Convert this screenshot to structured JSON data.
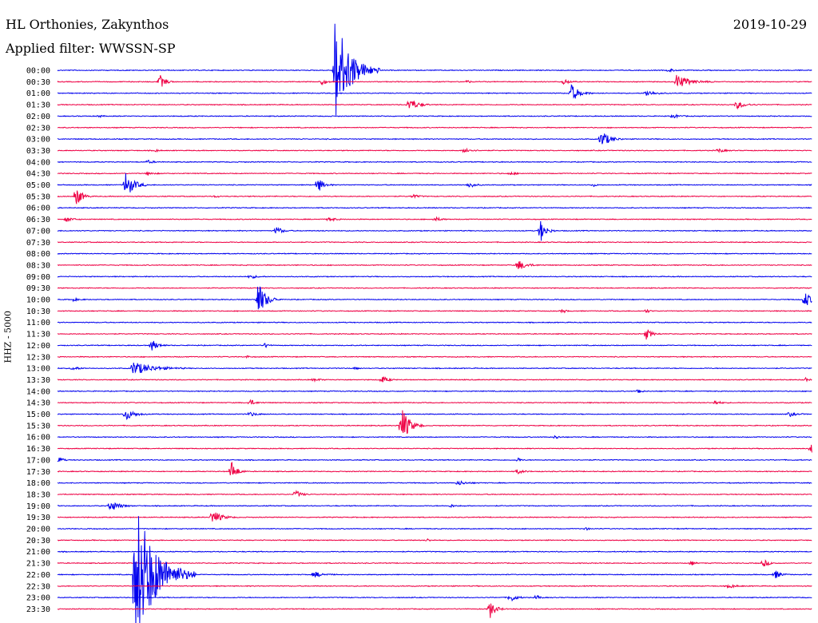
{
  "header": {
    "station": "HL Orthonies, Zakynthos",
    "filter": "Applied filter: WWSSN-SP",
    "date": "2019-10-29"
  },
  "colors": {
    "blue": "#0000ee",
    "red": "#ee0044"
  },
  "chart_data": {
    "type": "line",
    "title": "HL Orthonies, Zakynthos",
    "subtitle": "Applied filter: WWSSN-SP",
    "date": "2019-10-29",
    "ylabel": "HHZ - 5000",
    "xlabel": "",
    "grid": false,
    "color_cycle": [
      "blue",
      "red"
    ],
    "traces": [
      {
        "label": "00:00",
        "events": [
          {
            "x": 0.367,
            "amp": 70,
            "dur": 0.06
          },
          {
            "x": 0.81,
            "amp": 2,
            "dur": 0.02
          }
        ]
      },
      {
        "label": "00:30",
        "events": [
          {
            "x": 0.135,
            "amp": 10,
            "dur": 0.02
          },
          {
            "x": 0.349,
            "amp": 4,
            "dur": 0.02
          },
          {
            "x": 0.542,
            "amp": 3,
            "dur": 0.01
          },
          {
            "x": 0.67,
            "amp": 4,
            "dur": 0.02
          },
          {
            "x": 0.82,
            "amp": 9,
            "dur": 0.05
          }
        ]
      },
      {
        "label": "01:00",
        "events": [
          {
            "x": 0.68,
            "amp": 12,
            "dur": 0.03
          },
          {
            "x": 0.78,
            "amp": 4,
            "dur": 0.03
          }
        ]
      },
      {
        "label": "01:30",
        "events": [
          {
            "x": 0.465,
            "amp": 9,
            "dur": 0.03
          },
          {
            "x": 0.9,
            "amp": 5,
            "dur": 0.03
          }
        ]
      },
      {
        "label": "02:00",
        "events": [
          {
            "x": 0.055,
            "amp": 2,
            "dur": 0.01
          },
          {
            "x": 0.815,
            "amp": 3,
            "dur": 0.02
          }
        ]
      },
      {
        "label": "02:30",
        "events": []
      },
      {
        "label": "03:00",
        "events": [
          {
            "x": 0.72,
            "amp": 12,
            "dur": 0.03
          }
        ]
      },
      {
        "label": "03:30",
        "events": [
          {
            "x": 0.13,
            "amp": 2,
            "dur": 0.01
          },
          {
            "x": 0.54,
            "amp": 4,
            "dur": 0.02
          },
          {
            "x": 0.875,
            "amp": 3,
            "dur": 0.02
          }
        ]
      },
      {
        "label": "04:00",
        "events": [
          {
            "x": 0.12,
            "amp": 2,
            "dur": 0.02
          }
        ]
      },
      {
        "label": "04:30",
        "events": [
          {
            "x": 0.12,
            "amp": 2,
            "dur": 0.02
          },
          {
            "x": 0.6,
            "amp": 2,
            "dur": 0.02
          }
        ]
      },
      {
        "label": "05:00",
        "events": [
          {
            "x": 0.09,
            "amp": 18,
            "dur": 0.03
          },
          {
            "x": 0.345,
            "amp": 10,
            "dur": 0.02
          },
          {
            "x": 0.545,
            "amp": 4,
            "dur": 0.02
          },
          {
            "x": 0.71,
            "amp": 2,
            "dur": 0.01
          }
        ]
      },
      {
        "label": "05:30",
        "events": [
          {
            "x": 0.025,
            "amp": 14,
            "dur": 0.02
          },
          {
            "x": 0.21,
            "amp": 2,
            "dur": 0.01
          },
          {
            "x": 0.47,
            "amp": 3,
            "dur": 0.02
          }
        ]
      },
      {
        "label": "06:00",
        "events": []
      },
      {
        "label": "06:30",
        "events": [
          {
            "x": 0.012,
            "amp": 4,
            "dur": 0.02
          },
          {
            "x": 0.36,
            "amp": 3,
            "dur": 0.02
          },
          {
            "x": 0.5,
            "amp": 3,
            "dur": 0.02
          }
        ]
      },
      {
        "label": "07:00",
        "events": [
          {
            "x": 0.29,
            "amp": 6,
            "dur": 0.02
          },
          {
            "x": 0.64,
            "amp": 14,
            "dur": 0.02
          }
        ]
      },
      {
        "label": "07:30",
        "events": []
      },
      {
        "label": "08:00",
        "events": []
      },
      {
        "label": "08:30",
        "events": [
          {
            "x": 0.61,
            "amp": 7,
            "dur": 0.03
          }
        ]
      },
      {
        "label": "09:00",
        "events": [
          {
            "x": 0.255,
            "amp": 3,
            "dur": 0.02
          }
        ]
      },
      {
        "label": "09:30",
        "events": []
      },
      {
        "label": "10:00",
        "events": [
          {
            "x": 0.265,
            "amp": 24,
            "dur": 0.03
          },
          {
            "x": 0.02,
            "amp": 2,
            "dur": 0.02
          },
          {
            "x": 0.99,
            "amp": 12,
            "dur": 0.02
          }
        ]
      },
      {
        "label": "10:30",
        "events": [
          {
            "x": 0.67,
            "amp": 3,
            "dur": 0.01
          },
          {
            "x": 0.78,
            "amp": 3,
            "dur": 0.01
          }
        ]
      },
      {
        "label": "11:00",
        "events": []
      },
      {
        "label": "11:30",
        "events": [
          {
            "x": 0.78,
            "amp": 7,
            "dur": 0.02
          }
        ]
      },
      {
        "label": "12:00",
        "events": [
          {
            "x": 0.125,
            "amp": 8,
            "dur": 0.02
          },
          {
            "x": 0.275,
            "amp": 5,
            "dur": 0.01
          }
        ]
      },
      {
        "label": "12:30",
        "events": [
          {
            "x": 0.25,
            "amp": 2,
            "dur": 0.01
          }
        ]
      },
      {
        "label": "13:00",
        "events": [
          {
            "x": 0.02,
            "amp": 3,
            "dur": 0.02
          },
          {
            "x": 0.1,
            "amp": 9,
            "dur": 0.07
          },
          {
            "x": 0.395,
            "amp": 2,
            "dur": 0.01
          }
        ]
      },
      {
        "label": "13:30",
        "events": [
          {
            "x": 0.34,
            "amp": 2,
            "dur": 0.02
          },
          {
            "x": 0.43,
            "amp": 5,
            "dur": 0.02
          },
          {
            "x": 0.99,
            "amp": 3,
            "dur": 0.01
          }
        ]
      },
      {
        "label": "14:00",
        "events": [
          {
            "x": 0.77,
            "amp": 4,
            "dur": 0.01
          }
        ]
      },
      {
        "label": "14:30",
        "events": [
          {
            "x": 0.255,
            "amp": 4,
            "dur": 0.02
          },
          {
            "x": 0.87,
            "amp": 3,
            "dur": 0.02
          }
        ]
      },
      {
        "label": "15:00",
        "events": [
          {
            "x": 0.09,
            "amp": 8,
            "dur": 0.03
          },
          {
            "x": 0.255,
            "amp": 3,
            "dur": 0.02
          },
          {
            "x": 0.97,
            "amp": 3,
            "dur": 0.02
          }
        ]
      },
      {
        "label": "15:30",
        "events": [
          {
            "x": 0.455,
            "amp": 26,
            "dur": 0.03
          }
        ]
      },
      {
        "label": "16:00",
        "events": [
          {
            "x": 0.66,
            "amp": 3,
            "dur": 0.01
          }
        ]
      },
      {
        "label": "16:30",
        "events": [
          {
            "x": 0.998,
            "amp": 8,
            "dur": 0.01
          }
        ]
      },
      {
        "label": "17:00",
        "events": [
          {
            "x": 0.003,
            "amp": 6,
            "dur": 0.01
          },
          {
            "x": 0.61,
            "amp": 3,
            "dur": 0.01
          }
        ]
      },
      {
        "label": "17:30",
        "events": [
          {
            "x": 0.23,
            "amp": 14,
            "dur": 0.02
          },
          {
            "x": 0.61,
            "amp": 3,
            "dur": 0.02
          }
        ]
      },
      {
        "label": "18:00",
        "events": [
          {
            "x": 0.53,
            "amp": 3,
            "dur": 0.03
          }
        ]
      },
      {
        "label": "18:30",
        "events": [
          {
            "x": 0.315,
            "amp": 6,
            "dur": 0.02
          }
        ]
      },
      {
        "label": "19:00",
        "events": [
          {
            "x": 0.07,
            "amp": 8,
            "dur": 0.03
          },
          {
            "x": 0.52,
            "amp": 2,
            "dur": 0.02
          }
        ]
      },
      {
        "label": "19:30",
        "events": [
          {
            "x": 0.205,
            "amp": 10,
            "dur": 0.03
          }
        ]
      },
      {
        "label": "20:00",
        "events": [
          {
            "x": 0.7,
            "amp": 2,
            "dur": 0.01
          }
        ]
      },
      {
        "label": "20:30",
        "events": [
          {
            "x": 0.49,
            "amp": 2,
            "dur": 0.01
          }
        ]
      },
      {
        "label": "21:00",
        "events": []
      },
      {
        "label": "21:30",
        "events": [
          {
            "x": 0.84,
            "amp": 3,
            "dur": 0.01
          },
          {
            "x": 0.935,
            "amp": 5,
            "dur": 0.02
          }
        ]
      },
      {
        "label": "22:00",
        "events": [
          {
            "x": 0.103,
            "amp": 95,
            "dur": 0.08
          },
          {
            "x": 0.34,
            "amp": 4,
            "dur": 0.03
          },
          {
            "x": 0.95,
            "amp": 6,
            "dur": 0.02
          }
        ]
      },
      {
        "label": "22:30",
        "events": [
          {
            "x": 0.89,
            "amp": 3,
            "dur": 0.02
          }
        ]
      },
      {
        "label": "23:00",
        "events": [
          {
            "x": 0.6,
            "amp": 6,
            "dur": 0.02
          },
          {
            "x": 0.635,
            "amp": 4,
            "dur": 0.01
          }
        ]
      },
      {
        "label": "23:30",
        "events": [
          {
            "x": 0.572,
            "amp": 14,
            "dur": 0.02
          }
        ]
      }
    ]
  }
}
